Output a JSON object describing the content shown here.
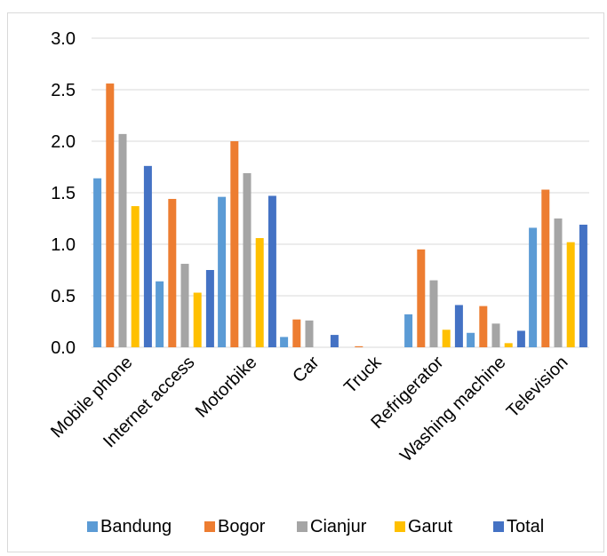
{
  "chart_data": {
    "type": "bar",
    "title": "",
    "xlabel": "",
    "ylabel": "",
    "ylim": [
      0,
      3.0
    ],
    "yticks": [
      "0.0",
      "0.5",
      "1.0",
      "1.5",
      "2.0",
      "2.5",
      "3.0"
    ],
    "ytick_values": [
      0,
      0.5,
      1.0,
      1.5,
      2.0,
      2.5,
      3.0
    ],
    "grid": true,
    "legend_position": "bottom",
    "categories": [
      "Mobile phone",
      "Internet access",
      "Motorbike",
      "Car",
      "Truck",
      "Refrigerator",
      "Washing machine",
      "Television"
    ],
    "series": [
      {
        "name": "Bandung",
        "color": "#5B9BD5",
        "values": [
          1.64,
          0.64,
          1.46,
          0.1,
          0.0,
          0.32,
          0.14,
          1.16
        ]
      },
      {
        "name": "Bogor",
        "color": "#ED7D31",
        "values": [
          2.56,
          1.44,
          2.0,
          0.27,
          0.01,
          0.95,
          0.4,
          1.53
        ]
      },
      {
        "name": "Cianjur",
        "color": "#A5A5A5",
        "values": [
          2.07,
          0.81,
          1.69,
          0.26,
          0.0,
          0.65,
          0.23,
          1.25
        ]
      },
      {
        "name": "Garut",
        "color": "#FFC000",
        "values": [
          1.37,
          0.53,
          1.06,
          0.0,
          0.0,
          0.17,
          0.04,
          1.02
        ]
      },
      {
        "name": "Total",
        "color": "#4472C4",
        "values": [
          1.76,
          0.75,
          1.47,
          0.12,
          0.0,
          0.41,
          0.16,
          1.19
        ]
      }
    ]
  }
}
